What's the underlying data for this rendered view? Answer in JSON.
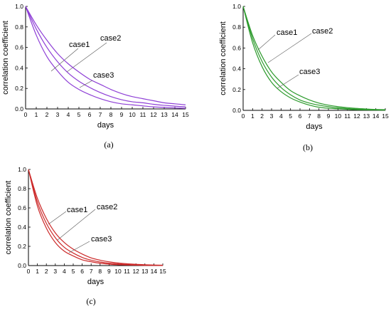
{
  "chart_data": [
    {
      "type": "line",
      "panel_label": "(a)",
      "color": "#8e3fd6",
      "xlabel": "days",
      "ylabel": "correlation coefficient",
      "xlim": [
        0,
        15
      ],
      "ylim": [
        0.0,
        1.0
      ],
      "x_ticks": [
        "0",
        "1",
        "2",
        "3",
        "4",
        "5",
        "6",
        "7",
        "8",
        "9",
        "10",
        "11",
        "12",
        "13",
        "14",
        "15"
      ],
      "y_ticks": [
        "0.0",
        "0.2",
        "0.4",
        "0.6",
        "0.8",
        "1.0"
      ],
      "series": [
        {
          "name": "case1",
          "x": [
            0,
            1,
            2,
            3,
            4,
            5,
            6,
            7,
            8,
            9,
            10,
            11,
            12,
            13,
            14,
            15
          ],
          "values": [
            1.0,
            0.72,
            0.51,
            0.37,
            0.26,
            0.19,
            0.14,
            0.1,
            0.07,
            0.05,
            0.04,
            0.03,
            0.02,
            0.015,
            0.01,
            0.005
          ]
        },
        {
          "name": "case2",
          "x": [
            0,
            1,
            2,
            3,
            4,
            5,
            6,
            7,
            8,
            9,
            10,
            11,
            12,
            13,
            14,
            15
          ],
          "values": [
            1.0,
            0.78,
            0.6,
            0.46,
            0.35,
            0.27,
            0.21,
            0.16,
            0.12,
            0.09,
            0.07,
            0.06,
            0.045,
            0.035,
            0.027,
            0.02
          ]
        },
        {
          "name": "case3",
          "x": [
            0,
            1,
            2,
            3,
            4,
            5,
            6,
            7,
            8,
            9,
            10,
            11,
            12,
            13,
            14,
            15
          ],
          "values": [
            1.0,
            0.82,
            0.67,
            0.54,
            0.44,
            0.36,
            0.29,
            0.24,
            0.19,
            0.15,
            0.12,
            0.1,
            0.08,
            0.06,
            0.05,
            0.04
          ]
        }
      ]
    },
    {
      "type": "line",
      "panel_label": "(b)",
      "color": "#2e9b2e",
      "xlabel": "days",
      "ylabel": "correlation coefficient",
      "xlim": [
        0,
        15
      ],
      "ylim": [
        0.0,
        1.0
      ],
      "x_ticks": [
        "0",
        "1",
        "2",
        "3",
        "4",
        "5",
        "6",
        "7",
        "8",
        "9",
        "10",
        "11",
        "12",
        "13",
        "14",
        "15"
      ],
      "y_ticks": [
        "0.0",
        "0.2",
        "0.4",
        "0.6",
        "0.8",
        "1.0"
      ],
      "series": [
        {
          "name": "case1",
          "x": [
            0,
            1,
            2,
            3,
            4,
            5,
            6,
            7,
            8,
            9,
            10,
            11,
            12,
            13,
            14,
            15
          ],
          "values": [
            1.0,
            0.65,
            0.42,
            0.27,
            0.18,
            0.12,
            0.08,
            0.05,
            0.03,
            0.02,
            0.015,
            0.01,
            0.006,
            0.004,
            0.003,
            0.002
          ]
        },
        {
          "name": "case2",
          "x": [
            0,
            1,
            2,
            3,
            4,
            5,
            6,
            7,
            8,
            9,
            10,
            11,
            12,
            13,
            14,
            15
          ],
          "values": [
            1.0,
            0.69,
            0.47,
            0.32,
            0.22,
            0.15,
            0.1,
            0.07,
            0.05,
            0.035,
            0.024,
            0.017,
            0.012,
            0.008,
            0.005,
            0.004
          ]
        },
        {
          "name": "case3",
          "x": [
            0,
            1,
            2,
            3,
            4,
            5,
            6,
            7,
            8,
            9,
            10,
            11,
            12,
            13,
            14,
            15
          ],
          "values": [
            1.0,
            0.72,
            0.52,
            0.37,
            0.27,
            0.19,
            0.14,
            0.1,
            0.07,
            0.05,
            0.036,
            0.026,
            0.019,
            0.013,
            0.009,
            0.007
          ]
        }
      ]
    },
    {
      "type": "line",
      "panel_label": "(c)",
      "color": "#cc2a2a",
      "xlabel": "days",
      "ylabel": "correlation coefficient",
      "xlim": [
        0,
        15
      ],
      "ylim": [
        0.0,
        1.0
      ],
      "x_ticks": [
        "0",
        "1",
        "2",
        "3",
        "4",
        "5",
        "6",
        "7",
        "8",
        "9",
        "10",
        "11",
        "12",
        "13",
        "14",
        "15"
      ],
      "y_ticks": [
        "0.0",
        "0.2",
        "0.4",
        "0.6",
        "0.8",
        "1.0"
      ],
      "series": [
        {
          "name": "case1",
          "x": [
            0,
            1,
            2,
            3,
            4,
            5,
            6,
            7,
            8,
            9,
            10,
            11,
            12,
            13,
            14,
            15
          ],
          "values": [
            1.0,
            0.62,
            0.39,
            0.24,
            0.15,
            0.1,
            0.06,
            0.04,
            0.024,
            0.015,
            0.009,
            0.006,
            0.004,
            0.002,
            0.0015,
            0.001
          ]
        },
        {
          "name": "case2",
          "x": [
            0,
            1,
            2,
            3,
            4,
            5,
            6,
            7,
            8,
            9,
            10,
            11,
            12,
            13,
            14,
            15
          ],
          "values": [
            1.0,
            0.66,
            0.44,
            0.29,
            0.19,
            0.13,
            0.085,
            0.056,
            0.037,
            0.024,
            0.016,
            0.011,
            0.007,
            0.005,
            0.003,
            0.002
          ]
        },
        {
          "name": "case3",
          "x": [
            0,
            1,
            2,
            3,
            4,
            5,
            6,
            7,
            8,
            9,
            10,
            11,
            12,
            13,
            14,
            15
          ],
          "values": [
            1.0,
            0.7,
            0.49,
            0.34,
            0.24,
            0.17,
            0.12,
            0.08,
            0.056,
            0.039,
            0.027,
            0.019,
            0.013,
            0.009,
            0.006,
            0.004
          ]
        }
      ]
    }
  ]
}
